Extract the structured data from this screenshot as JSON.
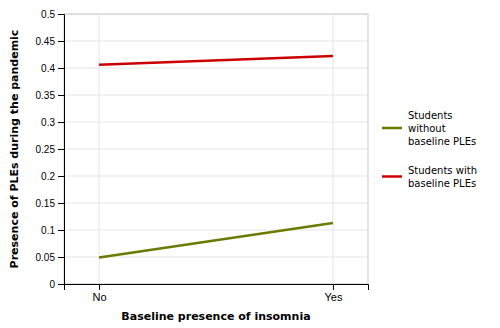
{
  "chart_data": {
    "type": "line",
    "x_label": "Baseline presence of insomnia",
    "y_label": "Presence of PLEs during the pandemic",
    "categories": [
      "No",
      "Yes"
    ],
    "series": [
      {
        "name": "Students\nwithout\nbaseline PLEs",
        "color": "#6b7a00",
        "values": [
          0.049,
          0.113
        ]
      },
      {
        "name": "Students with\nbaseline PLEs",
        "color": "#cc0000",
        "values": [
          0.406,
          0.422
        ]
      }
    ],
    "ylim": [
      0,
      0.5
    ],
    "yticks": [
      0,
      0.05,
      0.1,
      0.15,
      0.2,
      0.25,
      0.3,
      0.35,
      0.4,
      0.45,
      0.5
    ],
    "grid": true,
    "legend": "right"
  }
}
